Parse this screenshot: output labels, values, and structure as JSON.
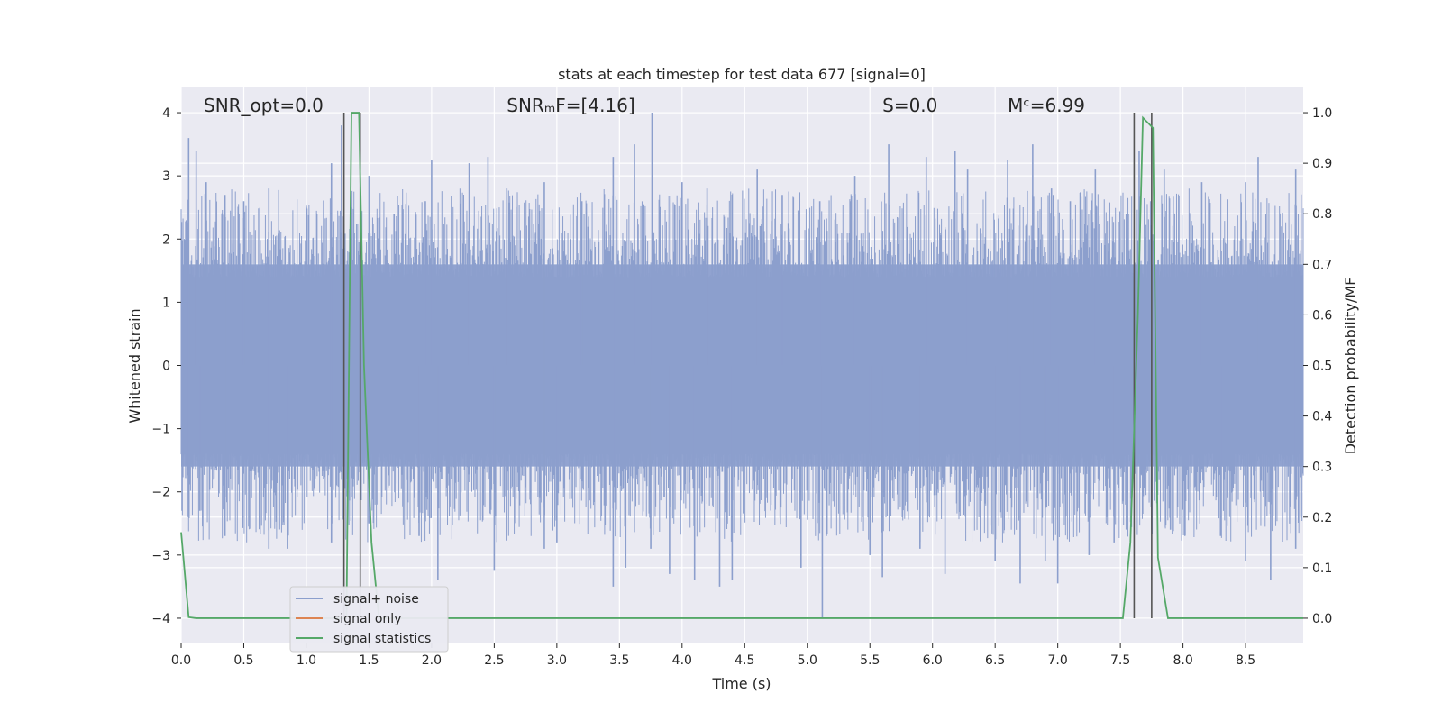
{
  "chart_data": {
    "type": "line",
    "title": "stats at each timestep for test data 677 [signal=0]",
    "xlabel": "Time (s)",
    "ylabel_left": "Whitened strain",
    "ylabel_right": "Detection probability/MF",
    "xlim": [
      0,
      8.96
    ],
    "ylim_left": [
      -4.4,
      4.4
    ],
    "ylim_right": [
      -0.05,
      1.05
    ],
    "x_ticks": [
      0.0,
      0.5,
      1.0,
      1.5,
      2.0,
      2.5,
      3.0,
      3.5,
      4.0,
      4.5,
      5.0,
      5.5,
      6.0,
      6.5,
      7.0,
      7.5,
      8.0,
      8.5
    ],
    "x_tick_labels": [
      "0.0",
      "0.5",
      "1.0",
      "1.5",
      "2.0",
      "2.5",
      "3.0",
      "3.5",
      "4.0",
      "4.5",
      "5.0",
      "5.5",
      "6.0",
      "6.5",
      "7.0",
      "7.5",
      "8.0",
      "8.5"
    ],
    "y_left_ticks": [
      -4,
      -3,
      -2,
      -1,
      0,
      1,
      2,
      3,
      4
    ],
    "y_left_tick_labels": [
      "−4",
      "−3",
      "−2",
      "−1",
      "0",
      "1",
      "2",
      "3",
      "4"
    ],
    "y_right_ticks": [
      0.0,
      0.1,
      0.2,
      0.3,
      0.4,
      0.5,
      0.6,
      0.7,
      0.8,
      0.9,
      1.0
    ],
    "y_right_tick_labels": [
      "0.0",
      "0.1",
      "0.2",
      "0.3",
      "0.4",
      "0.5",
      "0.6",
      "0.7",
      "0.8",
      "0.9",
      "1.0"
    ],
    "grid": true,
    "legend_placement": "lower-left",
    "legend": [
      {
        "label": "signal+ noise",
        "color": "#8c9fcd"
      },
      {
        "label": "signal only",
        "color": "#dd8452"
      },
      {
        "label": "signal statistics",
        "color": "#55a868"
      }
    ],
    "annotations": [
      {
        "text": "SNR_opt=0.0",
        "x": 0.18
      },
      {
        "text": "SNRₘF=[4.16]",
        "x": 2.6
      },
      {
        "text": "S=0.0",
        "x": 5.6
      },
      {
        "text": "Mᶜ=6.99",
        "x": 6.6
      }
    ],
    "noise_series": {
      "name": "signal+ noise",
      "color": "#8c9fcd",
      "typical_envelope": [
        -1.6,
        1.6
      ],
      "spikes": [
        [
          0.06,
          3.6
        ],
        [
          0.12,
          3.4
        ],
        [
          0.2,
          2.9
        ],
        [
          0.35,
          2.7
        ],
        [
          0.5,
          2.6
        ],
        [
          0.7,
          2.8
        ],
        [
          1.0,
          2.5
        ],
        [
          1.2,
          3.2
        ],
        [
          1.28,
          3.8
        ],
        [
          1.36,
          2.5
        ],
        [
          1.5,
          3.0
        ],
        [
          1.7,
          2.4
        ],
        [
          1.95,
          2.6
        ],
        [
          2.0,
          3.25
        ],
        [
          2.3,
          3.2
        ],
        [
          2.45,
          3.3
        ],
        [
          2.6,
          2.8
        ],
        [
          2.9,
          2.9
        ],
        [
          3.2,
          2.6
        ],
        [
          3.45,
          3.3
        ],
        [
          3.62,
          3.5
        ],
        [
          3.76,
          4.0
        ],
        [
          4.0,
          2.9
        ],
        [
          4.2,
          2.8
        ],
        [
          4.6,
          3.1
        ],
        [
          4.8,
          2.7
        ],
        [
          5.1,
          2.6
        ],
        [
          5.38,
          3.0
        ],
        [
          5.65,
          3.5
        ],
        [
          5.95,
          3.3
        ],
        [
          6.18,
          3.4
        ],
        [
          6.28,
          3.1
        ],
        [
          6.6,
          3.25
        ],
        [
          6.8,
          3.5
        ],
        [
          6.95,
          2.8
        ],
        [
          7.1,
          2.6
        ],
        [
          7.3,
          3.1
        ],
        [
          7.65,
          3.4
        ],
        [
          7.85,
          3.1
        ],
        [
          8.15,
          2.9
        ],
        [
          8.5,
          2.9
        ],
        [
          8.6,
          3.3
        ],
        [
          8.9,
          3.1
        ],
        [
          0.05,
          -2.4
        ],
        [
          0.15,
          -2.3
        ],
        [
          0.35,
          -2.7
        ],
        [
          0.7,
          -2.9
        ],
        [
          0.85,
          -2.9
        ],
        [
          1.2,
          -2.8
        ],
        [
          1.5,
          -2.5
        ],
        [
          1.9,
          -2.7
        ],
        [
          2.05,
          -3.4
        ],
        [
          2.5,
          -3.25
        ],
        [
          2.9,
          -2.9
        ],
        [
          3.0,
          -2.8
        ],
        [
          3.45,
          -3.5
        ],
        [
          3.55,
          -3.2
        ],
        [
          3.75,
          -2.9
        ],
        [
          3.9,
          -3.3
        ],
        [
          4.1,
          -3.4
        ],
        [
          4.3,
          -3.5
        ],
        [
          4.4,
          -3.4
        ],
        [
          4.95,
          -3.2
        ],
        [
          5.12,
          -4.0
        ],
        [
          5.5,
          -3.0
        ],
        [
          5.6,
          -3.35
        ],
        [
          5.9,
          -2.9
        ],
        [
          6.1,
          -3.3
        ],
        [
          6.5,
          -3.1
        ],
        [
          6.7,
          -3.45
        ],
        [
          6.9,
          -3.1
        ],
        [
          7.0,
          -3.45
        ],
        [
          7.25,
          -3.0
        ],
        [
          7.45,
          -2.8
        ],
        [
          7.75,
          -2.6
        ],
        [
          7.9,
          -2.6
        ],
        [
          8.3,
          -2.7
        ],
        [
          8.5,
          -3.1
        ],
        [
          8.7,
          -3.4
        ],
        [
          8.9,
          -2.9
        ]
      ]
    },
    "stat_series": {
      "name": "signal statistics",
      "color": "#55a868",
      "x": [
        0.0,
        0.06,
        0.12,
        1.3,
        1.32,
        1.36,
        1.42,
        1.46,
        1.52,
        1.58,
        1.64,
        7.52,
        7.58,
        7.64,
        7.68,
        7.72,
        7.76,
        7.8,
        7.88,
        8.96
      ],
      "y": [
        0.17,
        0.002,
        0.0,
        0.0,
        0.0,
        1.0,
        1.0,
        0.5,
        0.15,
        0.0,
        0.0,
        0.0,
        0.15,
        0.6,
        0.99,
        0.98,
        0.97,
        0.12,
        0.0,
        0.0
      ]
    },
    "vertical_lines": [
      1.3,
      1.43,
      7.61,
      7.75
    ],
    "vertical_line_color": "#555555"
  }
}
